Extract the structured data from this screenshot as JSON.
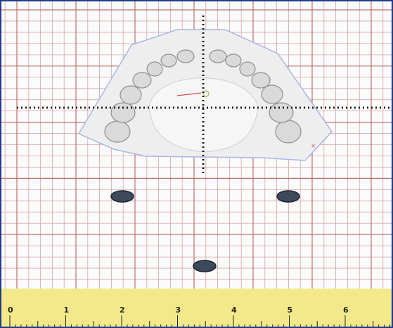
{
  "canvas": {
    "grid_color_major": "#c07070",
    "grid_color_minor": "#d6a7a7",
    "frame_color": "#1f3b8f"
  },
  "model_image": {
    "name": "upper-dental-arch-scan",
    "fill": "#eeeeee"
  },
  "markers": {
    "color": "#3c4a5c",
    "count": 3
  },
  "ruler": {
    "background": "#f4e98a",
    "labels": [
      "0",
      "1",
      "2",
      "3",
      "4",
      "5",
      "6"
    ]
  }
}
